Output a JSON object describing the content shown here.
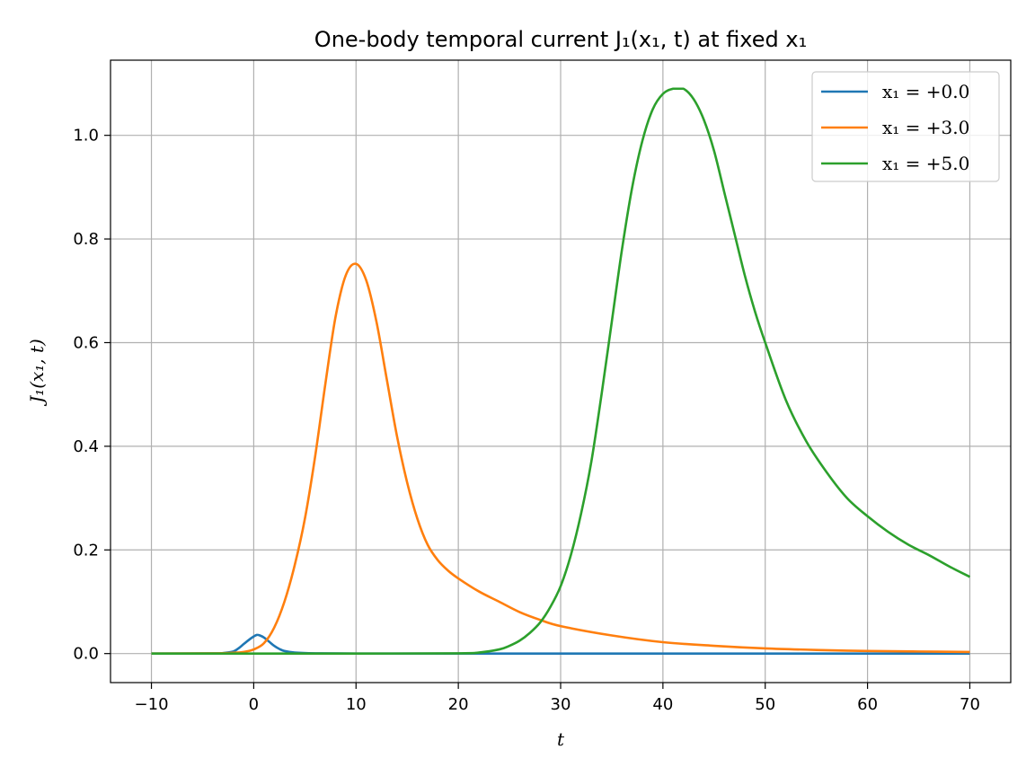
{
  "chart_data": {
    "type": "line",
    "title": "One-body temporal current J₁(x₁, t) at fixed x₁",
    "xlabel": "t",
    "ylabel": "J₁(x₁, t)",
    "xlim": [
      -14,
      74
    ],
    "ylim": [
      -0.056,
      1.145
    ],
    "xticks": [
      -10,
      0,
      10,
      20,
      30,
      40,
      50,
      60,
      70
    ],
    "xtick_labels": [
      "−10",
      "0",
      "10",
      "20",
      "30",
      "40",
      "50",
      "60",
      "70"
    ],
    "yticks": [
      0.0,
      0.2,
      0.4,
      0.6,
      0.8,
      1.0
    ],
    "ytick_labels": [
      "0.0",
      "0.2",
      "0.4",
      "0.6",
      "0.8",
      "1.0"
    ],
    "grid": true,
    "legend_position": "top-right",
    "series": [
      {
        "name": "x₁ = +0.0",
        "color": "#1f77b4",
        "x": [
          -10,
          -4,
          -3,
          -2,
          -1.5,
          -1,
          -0.5,
          0,
          0.3,
          0.6,
          1,
          1.5,
          2,
          2.5,
          3,
          4,
          6,
          10,
          20,
          40,
          70
        ],
        "y": [
          0,
          0.0003,
          0.001,
          0.004,
          0.01,
          0.018,
          0.026,
          0.033,
          0.036,
          0.035,
          0.031,
          0.023,
          0.015,
          0.009,
          0.005,
          0.002,
          0.0005,
          0.0001,
          0,
          0,
          0
        ]
      },
      {
        "name": "x₁ = +3.0",
        "color": "#ff7f0e",
        "x": [
          -10,
          -4,
          -2,
          -1,
          0,
          1,
          2,
          3,
          4,
          5,
          6,
          7,
          8,
          9,
          10,
          11,
          12,
          13,
          14,
          15,
          16,
          17,
          18,
          19,
          20,
          22,
          24,
          26,
          28,
          30,
          35,
          40,
          45,
          50,
          55,
          60,
          65,
          70
        ],
        "y": [
          0,
          0.0005,
          0.0015,
          0.003,
          0.008,
          0.02,
          0.05,
          0.1,
          0.17,
          0.26,
          0.38,
          0.52,
          0.65,
          0.73,
          0.752,
          0.72,
          0.64,
          0.53,
          0.42,
          0.33,
          0.26,
          0.21,
          0.18,
          0.16,
          0.145,
          0.12,
          0.1,
          0.08,
          0.065,
          0.053,
          0.035,
          0.022,
          0.015,
          0.01,
          0.007,
          0.005,
          0.004,
          0.003
        ]
      },
      {
        "name": "x₁ = +5.0",
        "color": "#2ca02c",
        "x": [
          -10,
          0,
          10,
          20,
          22,
          24,
          25,
          26,
          27,
          28,
          29,
          30,
          31,
          32,
          33,
          34,
          35,
          36,
          37,
          38,
          39,
          40,
          41,
          42,
          43,
          44,
          45,
          46,
          47,
          48,
          49,
          50,
          52,
          54,
          56,
          58,
          60,
          62,
          64,
          66,
          68,
          70
        ],
        "y": [
          0,
          0,
          0,
          0.0005,
          0.002,
          0.008,
          0.015,
          0.025,
          0.04,
          0.06,
          0.09,
          0.13,
          0.19,
          0.27,
          0.37,
          0.5,
          0.64,
          0.78,
          0.9,
          0.99,
          1.05,
          1.08,
          1.09,
          1.09,
          1.07,
          1.03,
          0.97,
          0.89,
          0.81,
          0.73,
          0.66,
          0.6,
          0.49,
          0.41,
          0.35,
          0.3,
          0.265,
          0.235,
          0.21,
          0.19,
          0.168,
          0.148
        ]
      }
    ]
  }
}
